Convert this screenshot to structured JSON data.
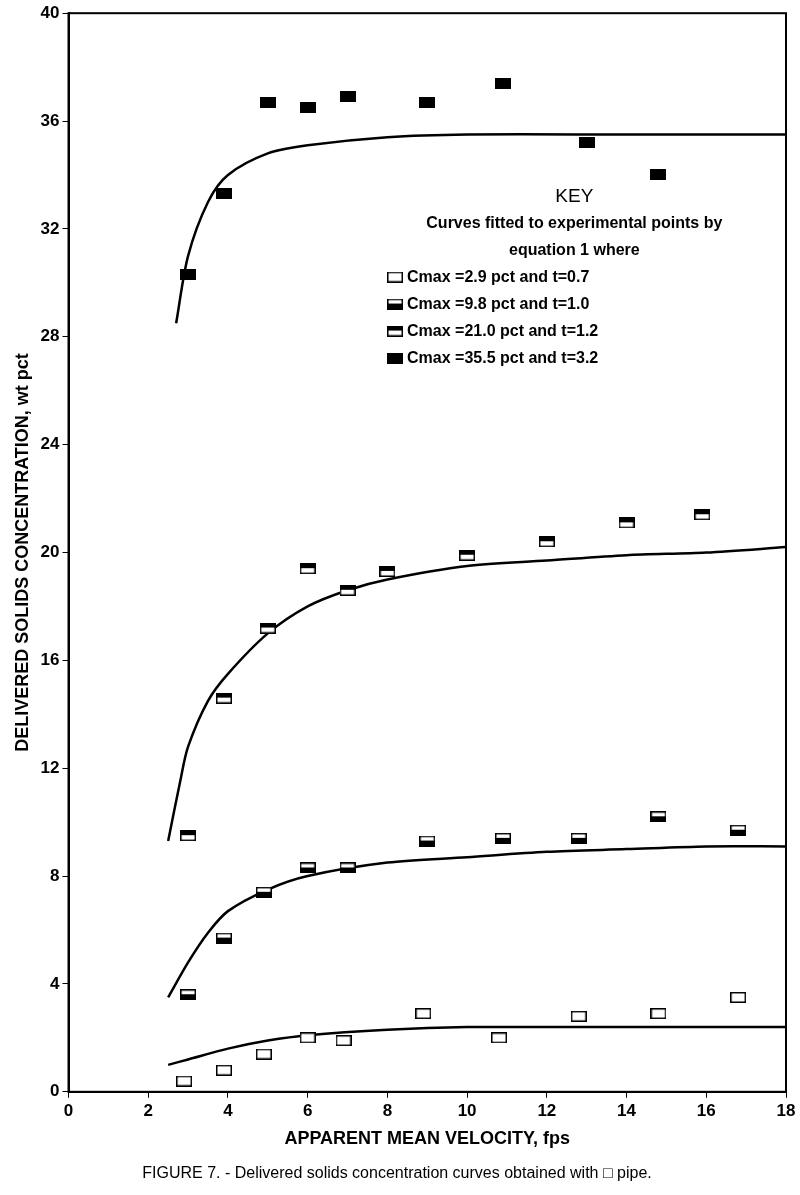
{
  "chart_data": {
    "type": "scatter",
    "title": "FIGURE 7. - Delivered solids concentration curves obtained with □ pipe.",
    "x_label": "APPARENT MEAN VELOCITY, fps",
    "y_label": "DELIVERED SOLIDS CONCENTRATION, wt pct",
    "xlim": [
      0,
      18
    ],
    "xticks": [
      0,
      2,
      4,
      6,
      8,
      10,
      12,
      14,
      16,
      18
    ],
    "ylim": [
      0,
      40
    ],
    "yticks": [
      0,
      4,
      8,
      12,
      16,
      20,
      24,
      28,
      32,
      36,
      40
    ],
    "grid": false,
    "legend": "upper right",
    "annotations": [
      "KEY",
      "Curves fitted to experimental points by",
      "equation 1 where"
    ],
    "series": [
      {
        "name": "Cmax =2.9 pct and t=0.7",
        "color": "#000000",
        "marker": "square_open",
        "x": [
          2.9,
          3.9,
          4.9,
          6.0,
          6.9,
          8.9,
          10.8,
          12.8,
          14.8,
          16.8
        ],
        "values": [
          0.4,
          0.8,
          1.4,
          2.0,
          1.9,
          2.9,
          2.0,
          2.8,
          2.9,
          3.5
        ],
        "curve": {
          "x": [
            2.5,
            3,
            4,
            5,
            6,
            8,
            10,
            12,
            14,
            16,
            18
          ],
          "values": [
            1.0,
            1.2,
            1.6,
            1.9,
            2.1,
            2.3,
            2.4,
            2.4,
            2.4,
            2.4,
            2.4
          ]
        }
      },
      {
        "name": "Cmax =9.8 pct and t=1.0",
        "color": "#000000",
        "marker": "square_half_bottom",
        "x": [
          3.0,
          3.9,
          4.9,
          6.0,
          7.0,
          9.0,
          10.9,
          12.8,
          14.8,
          16.8
        ],
        "values": [
          3.6,
          5.7,
          7.4,
          8.3,
          8.3,
          9.3,
          9.4,
          9.4,
          10.2,
          9.7
        ],
        "curve": {
          "x": [
            2.5,
            3,
            3.5,
            4,
            5,
            6,
            8,
            10,
            12,
            14,
            16,
            18
          ],
          "values": [
            3.5,
            4.8,
            5.9,
            6.7,
            7.5,
            8.0,
            8.5,
            8.7,
            8.9,
            9.0,
            9.1,
            9.1
          ]
        }
      },
      {
        "name": "Cmax =21.0 pct and t=1.2",
        "color": "#000000",
        "marker": "square_half_top",
        "x": [
          3.0,
          3.9,
          5.0,
          6.0,
          7.0,
          8.0,
          10.0,
          12.0,
          14.0,
          15.9
        ],
        "values": [
          9.5,
          14.6,
          17.2,
          19.4,
          18.6,
          19.3,
          19.9,
          20.4,
          21.1,
          21.4
        ],
        "curve": {
          "x": [
            2.5,
            2.8,
            3,
            3.5,
            4,
            5,
            6,
            7,
            8,
            10,
            12,
            14,
            16,
            18
          ],
          "values": [
            9.3,
            11.5,
            12.8,
            14.5,
            15.5,
            17.0,
            18.0,
            18.6,
            19.0,
            19.5,
            19.7,
            19.9,
            20.0,
            20.2
          ]
        }
      },
      {
        "name": "Cmax =35.5 pct and t=3.2",
        "color": "#000000",
        "marker": "square_filled",
        "x": [
          3.0,
          3.9,
          5.0,
          6.0,
          7.0,
          9.0,
          10.9,
          13.0,
          14.8
        ],
        "values": [
          30.3,
          33.3,
          36.7,
          36.5,
          36.9,
          36.7,
          37.4,
          35.2,
          34.0
        ],
        "curve": {
          "x": [
            2.7,
            3,
            3.5,
            4,
            5,
            6,
            8,
            10,
            14,
            18
          ],
          "values": [
            28.5,
            31.0,
            33.0,
            34.0,
            34.8,
            35.1,
            35.4,
            35.5,
            35.5,
            35.5
          ]
        }
      }
    ]
  }
}
